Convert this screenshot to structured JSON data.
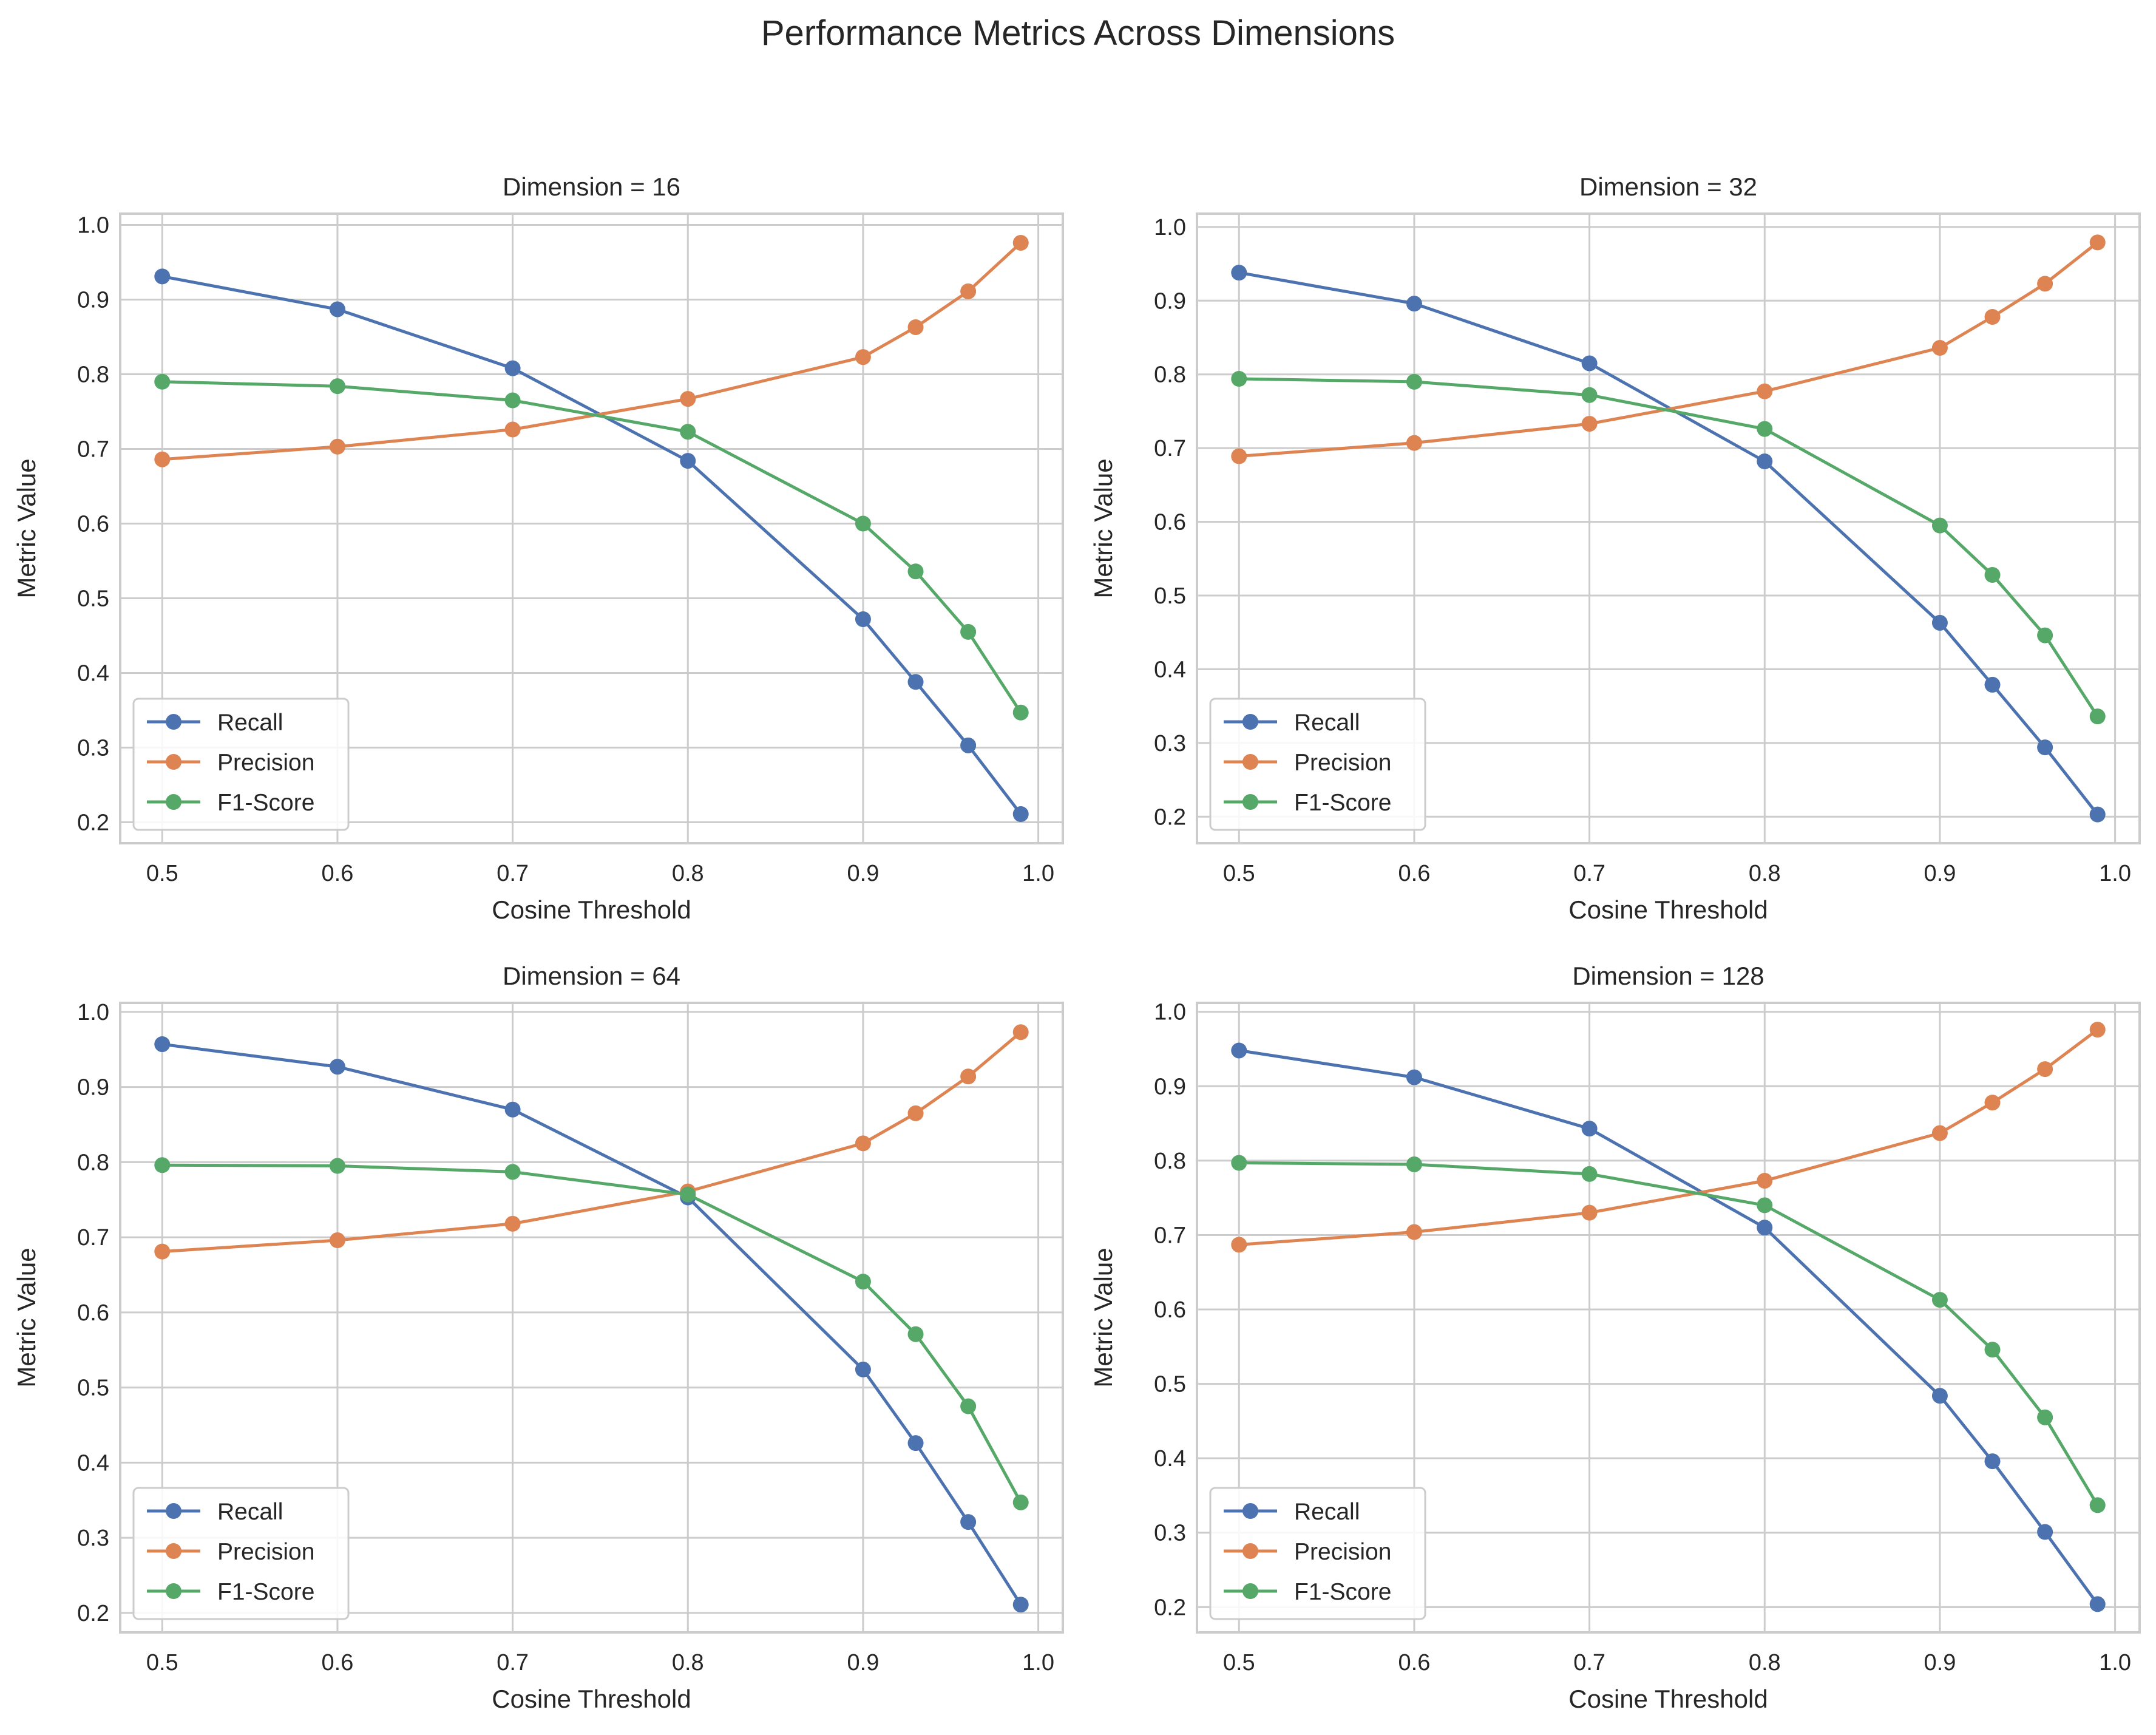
{
  "figure": {
    "title": "Performance Metrics Across Dimensions"
  },
  "colors": {
    "Recall": "#4c72b0",
    "Precision": "#dd8452",
    "F1-Score": "#55a868"
  },
  "chart_data": [
    {
      "type": "line",
      "title": "Dimension = 16",
      "xlabel": "Cosine Threshold",
      "ylabel": "Metric Value",
      "x": [
        0.5,
        0.6,
        0.7,
        0.8,
        0.9,
        0.93,
        0.96,
        0.99
      ],
      "xticks": [
        "0.5",
        "0.6",
        "0.7",
        "0.8",
        "0.9",
        "1.0"
      ],
      "yticks": [
        "0.2",
        "0.3",
        "0.4",
        "0.5",
        "0.6",
        "0.7",
        "0.8",
        "0.9",
        "1.0"
      ],
      "xlim": [
        0.476,
        1.014
      ],
      "ylim": [
        0.172,
        1.015
      ],
      "grid": true,
      "legend": "lower-left",
      "series": [
        {
          "name": "Recall",
          "values": [
            0.931,
            0.887,
            0.808,
            0.684,
            0.472,
            0.388,
            0.303,
            0.211
          ]
        },
        {
          "name": "Precision",
          "values": [
            0.686,
            0.703,
            0.726,
            0.767,
            0.823,
            0.863,
            0.911,
            0.976
          ]
        },
        {
          "name": "F1-Score",
          "values": [
            0.79,
            0.784,
            0.765,
            0.723,
            0.6,
            0.536,
            0.455,
            0.347
          ]
        }
      ]
    },
    {
      "type": "line",
      "title": "Dimension = 32",
      "xlabel": "Cosine Threshold",
      "ylabel": "Metric Value",
      "x": [
        0.5,
        0.6,
        0.7,
        0.8,
        0.9,
        0.93,
        0.96,
        0.99
      ],
      "xticks": [
        "0.5",
        "0.6",
        "0.7",
        "0.8",
        "0.9",
        "1.0"
      ],
      "yticks": [
        "0.2",
        "0.3",
        "0.4",
        "0.5",
        "0.6",
        "0.7",
        "0.8",
        "0.9",
        "1.0"
      ],
      "xlim": [
        0.476,
        1.014
      ],
      "ylim": [
        0.164,
        1.018
      ],
      "grid": true,
      "legend": "lower-left",
      "series": [
        {
          "name": "Recall",
          "values": [
            0.938,
            0.896,
            0.815,
            0.682,
            0.463,
            0.379,
            0.294,
            0.203
          ]
        },
        {
          "name": "Precision",
          "values": [
            0.689,
            0.707,
            0.733,
            0.777,
            0.836,
            0.878,
            0.923,
            0.979
          ]
        },
        {
          "name": "F1-Score",
          "values": [
            0.794,
            0.79,
            0.772,
            0.726,
            0.595,
            0.528,
            0.446,
            0.336
          ]
        }
      ]
    },
    {
      "type": "line",
      "title": "Dimension = 64",
      "xlabel": "Cosine Threshold",
      "ylabel": "Metric Value",
      "x": [
        0.5,
        0.6,
        0.7,
        0.8,
        0.9,
        0.93,
        0.96,
        0.99
      ],
      "xticks": [
        "0.5",
        "0.6",
        "0.7",
        "0.8",
        "0.9",
        "1.0"
      ],
      "yticks": [
        "0.2",
        "0.3",
        "0.4",
        "0.5",
        "0.6",
        "0.7",
        "0.8",
        "0.9",
        "1.0"
      ],
      "xlim": [
        0.476,
        1.014
      ],
      "ylim": [
        0.174,
        1.012
      ],
      "grid": true,
      "legend": "lower-left",
      "series": [
        {
          "name": "Recall",
          "values": [
            0.957,
            0.927,
            0.87,
            0.753,
            0.524,
            0.426,
            0.321,
            0.211
          ]
        },
        {
          "name": "Precision",
          "values": [
            0.681,
            0.696,
            0.718,
            0.761,
            0.825,
            0.865,
            0.914,
            0.973
          ]
        },
        {
          "name": "F1-Score",
          "values": [
            0.796,
            0.795,
            0.787,
            0.757,
            0.641,
            0.571,
            0.475,
            0.347
          ]
        }
      ]
    },
    {
      "type": "line",
      "title": "Dimension = 128",
      "xlabel": "Cosine Threshold",
      "ylabel": "Metric Value",
      "x": [
        0.5,
        0.6,
        0.7,
        0.8,
        0.9,
        0.93,
        0.96,
        0.99
      ],
      "xticks": [
        "0.5",
        "0.6",
        "0.7",
        "0.8",
        "0.9",
        "1.0"
      ],
      "yticks": [
        "0.2",
        "0.3",
        "0.4",
        "0.5",
        "0.6",
        "0.7",
        "0.8",
        "0.9",
        "1.0"
      ],
      "xlim": [
        0.476,
        1.014
      ],
      "ylim": [
        0.166,
        1.012
      ],
      "grid": true,
      "legend": "lower-left",
      "series": [
        {
          "name": "Recall",
          "values": [
            0.948,
            0.912,
            0.843,
            0.71,
            0.484,
            0.396,
            0.301,
            0.204
          ]
        },
        {
          "name": "Precision",
          "values": [
            0.687,
            0.704,
            0.73,
            0.773,
            0.837,
            0.878,
            0.923,
            0.976
          ]
        },
        {
          "name": "F1-Score",
          "values": [
            0.797,
            0.795,
            0.782,
            0.74,
            0.613,
            0.546,
            0.455,
            0.337
          ]
        }
      ]
    }
  ]
}
